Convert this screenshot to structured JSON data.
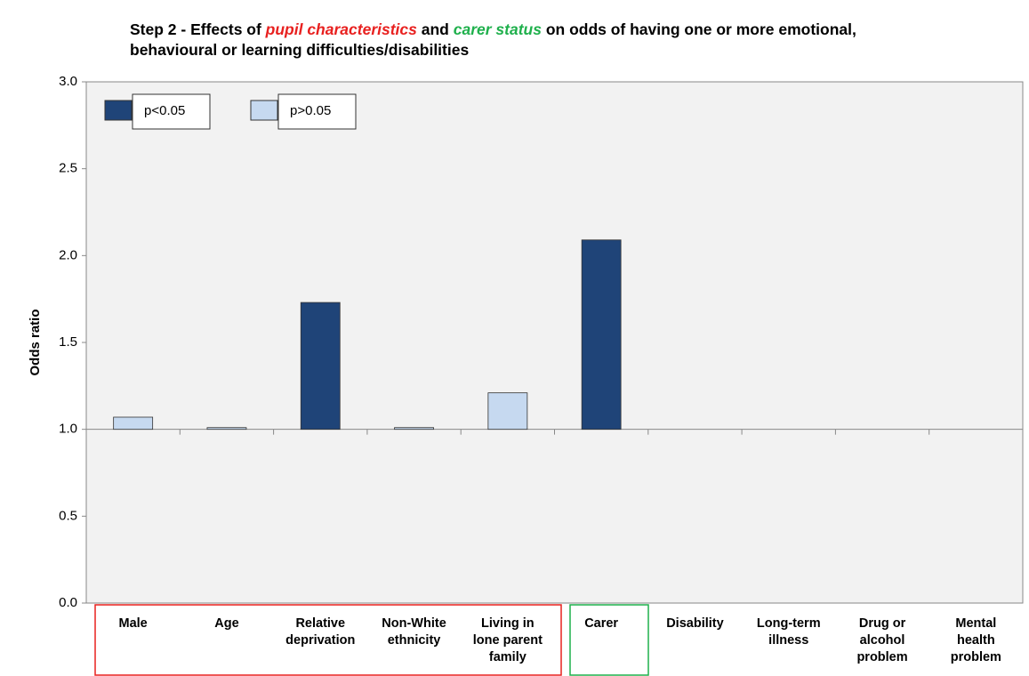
{
  "chart_data": {
    "type": "bar",
    "title_parts": [
      "Step 2 - Effects of ",
      "pupil characteristics",
      " and ",
      "carer status",
      " on odds of having one or more emotional, behavioural or learning difficulties/disabilities"
    ],
    "y_label": "Odds ratio",
    "categories": [
      "Male",
      "Age",
      "Relative deprivation",
      "Non-White ethnicity",
      "Living in lone parent family",
      "Carer",
      "Disability",
      "Long-term illness",
      "Drug or alcohol problem",
      "Mental health problem"
    ],
    "series": [
      {
        "name": "p<0.05",
        "color": "#1f4478",
        "values": [
          null,
          null,
          1.73,
          null,
          null,
          2.09,
          null,
          null,
          null,
          null
        ]
      },
      {
        "name": "p>0.05",
        "color": "#c6d9f0",
        "values": [
          1.07,
          1.01,
          null,
          1.01,
          1.21,
          null,
          null,
          null,
          null,
          null
        ]
      }
    ],
    "baseline": 1,
    "ylim": [
      0,
      3
    ],
    "yticks": [
      {
        "value": 0,
        "label": "0.0"
      },
      {
        "value": 0.5,
        "label": "0.5"
      },
      {
        "value": 1,
        "label": "1.0"
      },
      {
        "value": 1.5,
        "label": "1.5"
      },
      {
        "value": 2,
        "label": "2.0"
      },
      {
        "value": 2.5,
        "label": "2.5"
      },
      {
        "value": 3,
        "label": "3.0"
      }
    ],
    "grid": false
  }
}
